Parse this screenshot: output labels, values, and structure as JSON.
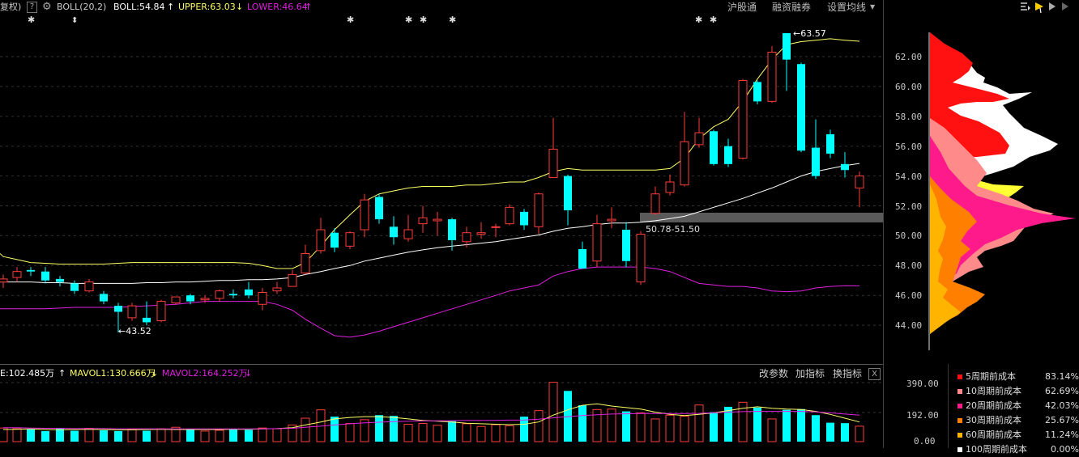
{
  "header": {
    "left_cut": "复权)",
    "help": "?",
    "indicator": "BOLL(20,2)",
    "boll": "BOLL:54.84",
    "boll_arrow": "↑",
    "upper": "UPPER:63.03",
    "upper_arrow": "↓",
    "lower": "LOWER:46.64",
    "lower_arrow": "↑",
    "menu": [
      "沪股通",
      "融资融券",
      "设置均线"
    ]
  },
  "price_axis": [
    "62.00",
    "60.00",
    "58.00",
    "56.00",
    "54.00",
    "52.00",
    "50.00",
    "48.00",
    "46.00",
    "44.00"
  ],
  "annotations": {
    "high": "63.57",
    "low": "43.52",
    "zone": "50.78-51.50"
  },
  "volume_header": {
    "vol": "E:102.485万",
    "vol_arrow": "↑",
    "mavol1": "MAVOL1:130.666万",
    "mavol1_arrow": "↓",
    "mavol2": "MAVOL2:164.252万",
    "mavol2_arrow": "↓",
    "buttons": [
      "改参数",
      "加指标",
      "换指标"
    ],
    "close": "X"
  },
  "volume_axis": [
    "390.00",
    "192.00",
    "0.00"
  ],
  "cost_legend": [
    {
      "label": "5周期前成本",
      "pct": "83.14%",
      "color": "#ff1111"
    },
    {
      "label": "10周期前成本",
      "pct": "62.69%",
      "color": "#ff8a8a"
    },
    {
      "label": "20周期前成本",
      "pct": "42.03%",
      "color": "#ff1a8c"
    },
    {
      "label": "30周期前成本",
      "pct": "25.67%",
      "color": "#ff7f00"
    },
    {
      "label": "60周期前成本",
      "pct": "11.24%",
      "color": "#ffb400"
    },
    {
      "label": "100周期前成本",
      "pct": "0.00%",
      "color": "#ffffff"
    }
  ],
  "colors": {
    "up": "#ff3c3c",
    "down": "#00ffff",
    "mid": "#ffffff",
    "upper": "#ffff66",
    "lower": "#e020e0",
    "mavol1": "#ffff66",
    "mavol2": "#e020e0"
  }
}
